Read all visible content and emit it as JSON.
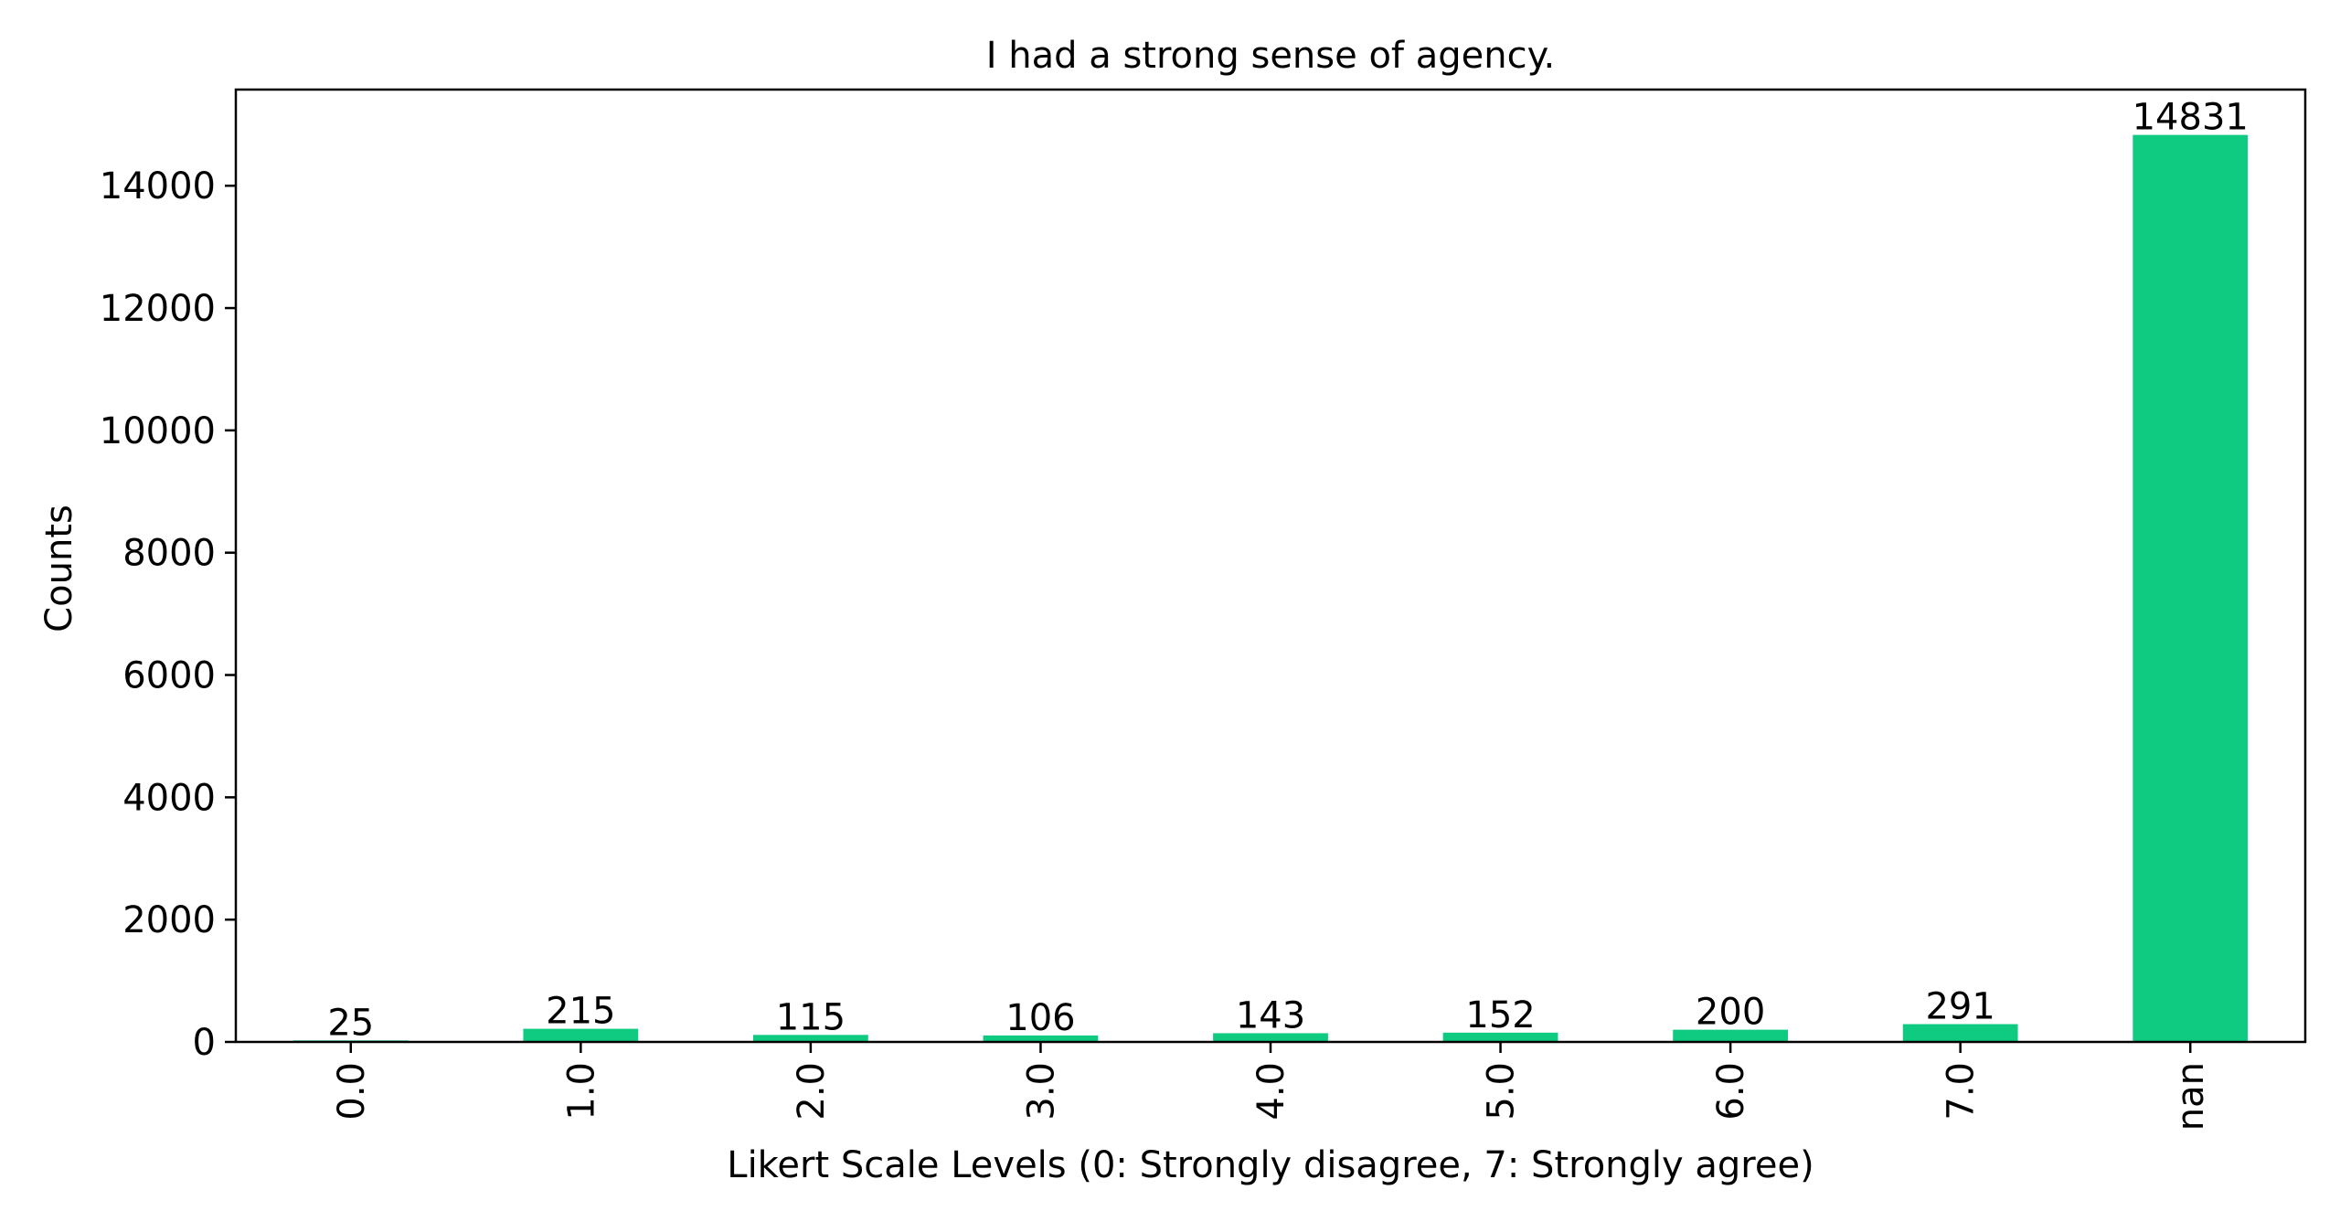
{
  "chart_data": {
    "type": "bar",
    "title": "I had a strong sense of agency.",
    "xlabel": "Likert Scale Levels (0: Strongly disagree, 7: Strongly agree)",
    "ylabel": "Counts",
    "categories": [
      "0.0",
      "1.0",
      "2.0",
      "3.0",
      "4.0",
      "5.0",
      "6.0",
      "7.0",
      "nan"
    ],
    "values": [
      25,
      215,
      115,
      106,
      143,
      152,
      200,
      291,
      14831
    ],
    "data_labels": [
      "25",
      "215",
      "115",
      "106",
      "143",
      "152",
      "200",
      "291",
      "14831"
    ],
    "yticks": [
      0,
      2000,
      4000,
      6000,
      8000,
      10000,
      12000,
      14000
    ],
    "ytick_labels": [
      "0",
      "2000",
      "4000",
      "6000",
      "8000",
      "10000",
      "12000",
      "14000"
    ],
    "ylim": [
      0,
      15572.55
    ],
    "xtick_rotation": "vertical",
    "grid": false,
    "legend": "none",
    "bar_color": "#0ecb81",
    "axis_color": "#000000",
    "text_color": "#000000"
  }
}
